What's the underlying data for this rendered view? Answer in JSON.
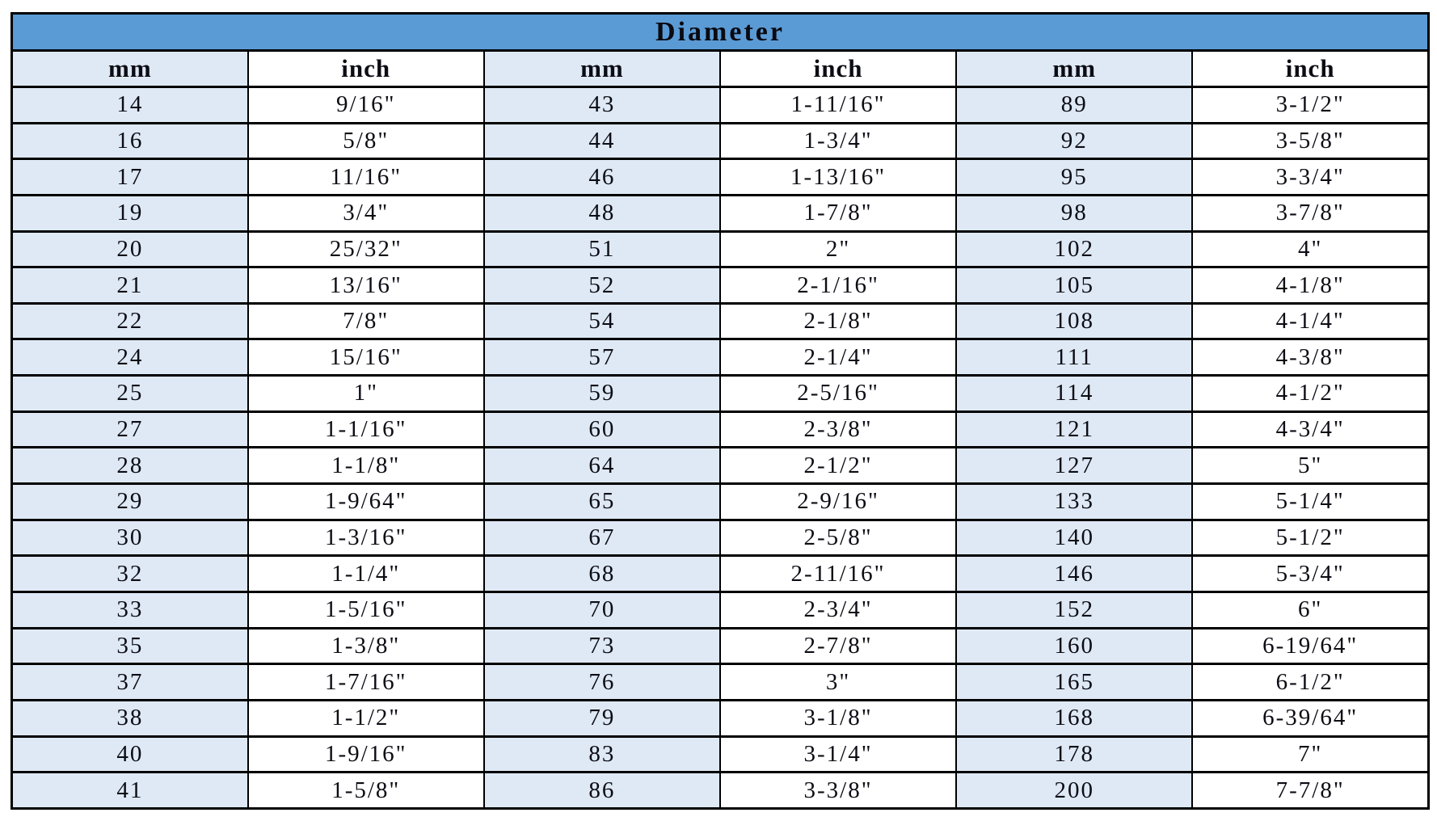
{
  "table": {
    "title": "Diameter",
    "header": [
      "mm",
      "inch",
      "mm",
      "inch",
      "mm",
      "inch"
    ],
    "rows": [
      [
        "14",
        "9/16\"",
        "43",
        "1-11/16\"",
        "89",
        "3-1/2\""
      ],
      [
        "16",
        "5/8\"",
        "44",
        "1-3/4\"",
        "92",
        "3-5/8\""
      ],
      [
        "17",
        "11/16\"",
        "46",
        "1-13/16\"",
        "95",
        "3-3/4\""
      ],
      [
        "19",
        "3/4\"",
        "48",
        "1-7/8\"",
        "98",
        "3-7/8\""
      ],
      [
        "20",
        "25/32\"",
        "51",
        "2\"",
        "102",
        "4\""
      ],
      [
        "21",
        "13/16\"",
        "52",
        "2-1/16\"",
        "105",
        "4-1/8\""
      ],
      [
        "22",
        "7/8\"",
        "54",
        "2-1/8\"",
        "108",
        "4-1/4\""
      ],
      [
        "24",
        "15/16\"",
        "57",
        "2-1/4\"",
        "111",
        "4-3/8\""
      ],
      [
        "25",
        "1\"",
        "59",
        "2-5/16\"",
        "114",
        "4-1/2\""
      ],
      [
        "27",
        "1-1/16\"",
        "60",
        "2-3/8\"",
        "121",
        "4-3/4\""
      ],
      [
        "28",
        "1-1/8\"",
        "64",
        "2-1/2\"",
        "127",
        "5\""
      ],
      [
        "29",
        "1-9/64\"",
        "65",
        "2-9/16\"",
        "133",
        "5-1/4\""
      ],
      [
        "30",
        "1-3/16\"",
        "67",
        "2-5/8\"",
        "140",
        "5-1/2\""
      ],
      [
        "32",
        "1-1/4\"",
        "68",
        "2-11/16\"",
        "146",
        "5-3/4\""
      ],
      [
        "33",
        "1-5/16\"",
        "70",
        "2-3/4\"",
        "152",
        "6\""
      ],
      [
        "35",
        "1-3/8\"",
        "73",
        "2-7/8\"",
        "160",
        "6-19/64\""
      ],
      [
        "37",
        "1-7/16\"",
        "76",
        "3\"",
        "165",
        "6-1/2\""
      ],
      [
        "38",
        "1-1/2\"",
        "79",
        "3-1/8\"",
        "168",
        "6-39/64\""
      ],
      [
        "40",
        "1-9/16\"",
        "83",
        "3-1/4\"",
        "178",
        "7\""
      ],
      [
        "41",
        "1-5/8\"",
        "86",
        "3-3/8\"",
        "200",
        "7-7/8\""
      ]
    ]
  },
  "colors": {
    "title_bar_blue": "#5B9BD5",
    "mm_cell_blue": "#DEE9F5",
    "inch_cell_white": "#FFFFFF",
    "border_black": "#000000"
  }
}
